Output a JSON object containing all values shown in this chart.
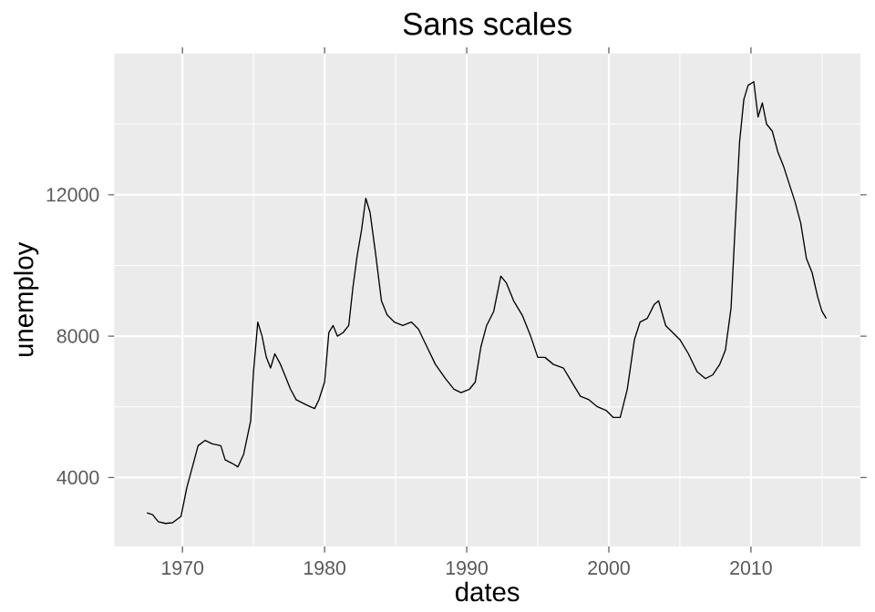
{
  "chart_data": {
    "type": "line",
    "title": "Sans scales",
    "xlabel": "dates",
    "ylabel": "unemploy",
    "x": [
      1967.5,
      1967.9,
      1968.3,
      1968.8,
      1969.3,
      1969.9,
      1970.3,
      1970.7,
      1971.1,
      1971.6,
      1972.1,
      1972.7,
      1973.0,
      1973.5,
      1973.9,
      1974.3,
      1974.8,
      1975.0,
      1975.3,
      1975.6,
      1975.9,
      1976.2,
      1976.5,
      1976.9,
      1977.2,
      1977.6,
      1978.0,
      1978.5,
      1979.0,
      1979.3,
      1979.6,
      1980.0,
      1980.3,
      1980.6,
      1980.9,
      1981.3,
      1981.7,
      1982.0,
      1982.3,
      1982.6,
      1982.9,
      1983.2,
      1983.6,
      1984.0,
      1984.4,
      1984.9,
      1985.5,
      1986.1,
      1986.6,
      1987.2,
      1987.8,
      1988.5,
      1989.1,
      1989.6,
      1990.2,
      1990.6,
      1991.0,
      1991.4,
      1991.9,
      1992.4,
      1992.8,
      1993.3,
      1993.9,
      1994.5,
      1995.0,
      1995.5,
      1996.1,
      1996.8,
      1997.4,
      1998.0,
      1998.6,
      1999.2,
      1999.8,
      2000.3,
      2000.8,
      2001.3,
      2001.8,
      2002.2,
      2002.7,
      2003.2,
      2003.5,
      2004.0,
      2004.5,
      2005.0,
      2005.6,
      2006.2,
      2006.8,
      2007.3,
      2007.8,
      2008.2,
      2008.6,
      2008.9,
      2009.2,
      2009.5,
      2009.8,
      2010.2,
      2010.5,
      2010.8,
      2011.1,
      2011.5,
      2011.9,
      2012.3,
      2012.7,
      2013.1,
      2013.5,
      2013.9,
      2014.3,
      2014.7,
      2015.0,
      2015.3
    ],
    "values": [
      3000,
      2950,
      2750,
      2700,
      2720,
      2900,
      3700,
      4300,
      4900,
      5050,
      4950,
      4900,
      4500,
      4400,
      4300,
      4650,
      5600,
      7000,
      8400,
      8000,
      7400,
      7100,
      7500,
      7200,
      6900,
      6500,
      6200,
      6100,
      6000,
      5950,
      6200,
      6700,
      8100,
      8300,
      8000,
      8100,
      8300,
      9400,
      10300,
      11000,
      11900,
      11500,
      10300,
      9000,
      8600,
      8400,
      8300,
      8400,
      8200,
      7700,
      7200,
      6800,
      6500,
      6400,
      6500,
      6700,
      7700,
      8300,
      8700,
      9700,
      9500,
      9000,
      8600,
      8000,
      7400,
      7400,
      7200,
      7100,
      6700,
      6300,
      6200,
      6000,
      5900,
      5700,
      5700,
      6500,
      7900,
      8400,
      8500,
      8900,
      9000,
      8300,
      8100,
      7900,
      7500,
      7000,
      6800,
      6900,
      7200,
      7600,
      8800,
      11200,
      13500,
      14700,
      15100,
      15200,
      14200,
      14600,
      14000,
      13800,
      13200,
      12800,
      12300,
      11800,
      11200,
      10200,
      9800,
      9100,
      8700,
      8500
    ],
    "color": "#000000",
    "xlim": [
      1965.2,
      2017.7
    ],
    "ylim": [
      2050,
      16000
    ],
    "xticks": [
      1970,
      1980,
      1990,
      2000,
      2010
    ],
    "yticks": [
      4000,
      8000,
      12000
    ],
    "grid": true
  }
}
